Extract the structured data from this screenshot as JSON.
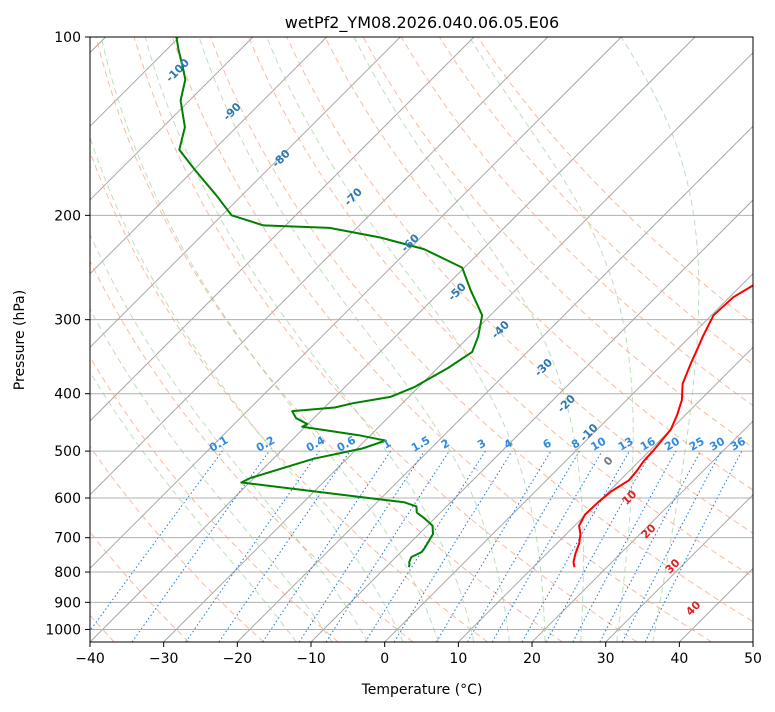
{
  "chart_data": {
    "type": "line",
    "title": "wetPf2_YM08.2026.040.06.05.E06",
    "xlabel": "Temperature (°C)",
    "ylabel": "Pressure (hPa)",
    "xlim": [
      -40,
      50
    ],
    "ylim": [
      1050,
      100
    ],
    "y_scale": "log",
    "grid": true,
    "x_ticks": [
      -40,
      -30,
      -20,
      -10,
      0,
      10,
      20,
      30,
      40,
      50
    ],
    "y_ticks": [
      100,
      200,
      300,
      400,
      500,
      600,
      700,
      800,
      900,
      1000
    ],
    "skew_guides": {
      "isotherm_step": 10,
      "dry_adiabat_start": [
        -40,
        -30,
        -20,
        -10,
        0,
        10,
        20,
        30,
        40,
        50,
        60,
        70,
        80,
        90,
        100,
        110,
        120
      ],
      "moist_adiabat_start": [
        -15,
        -10,
        -5,
        0,
        5,
        10,
        15,
        20,
        25,
        30,
        35
      ],
      "mixing_ratios": [
        0.1,
        0.2,
        0.4,
        0.6,
        1,
        1.5,
        2,
        3,
        4,
        6,
        8,
        10,
        13,
        16,
        20,
        25,
        30,
        36
      ]
    },
    "mixing_ratio_labels": [
      "0.1",
      "0.2",
      "0.4",
      "0.6",
      "1",
      "1.5",
      "2",
      "3",
      "4",
      "6",
      "8",
      "10",
      "13",
      "16",
      "20",
      "25",
      "30",
      "36"
    ],
    "isotherm_labels_upper": [
      {
        "text": "-100",
        "x": -105,
        "p": 115
      },
      {
        "text": "-90",
        "x": -92,
        "p": 135
      },
      {
        "text": "-80",
        "x": -79,
        "p": 162
      },
      {
        "text": "-70",
        "x": -64,
        "p": 188
      },
      {
        "text": "-60",
        "x": -50,
        "p": 225
      },
      {
        "text": "-50",
        "x": -37,
        "p": 272
      },
      {
        "text": "-40",
        "x": -26,
        "p": 315
      },
      {
        "text": "-30",
        "x": -15,
        "p": 365
      },
      {
        "text": "-20",
        "x": -7,
        "p": 420
      },
      {
        "text": "-10",
        "x": 0,
        "p": 470
      }
    ],
    "isotherm_labels_lower": [
      {
        "text": "0",
        "x": 6.5,
        "p": 525
      },
      {
        "text": "10",
        "x": 14.3,
        "p": 605
      },
      {
        "text": "20",
        "x": 21.5,
        "p": 690
      },
      {
        "text": "30",
        "x": 29.5,
        "p": 790
      },
      {
        "text": "40",
        "x": 38,
        "p": 930
      }
    ],
    "series": [
      {
        "color": "#ff0000",
        "x": [
          15.6,
          14.8,
          13.9,
          13.0,
          11.9,
          10.6,
          9.9,
          10.0,
          10.3,
          11.2,
          11.0,
          10.6,
          10.5,
          10.0,
          8.9,
          7.5,
          5.4,
          3.7,
          2.6,
          1.7,
          0.3,
          0.5,
          2.0,
          4.2,
          6.4,
          8.1,
          9.2,
          9.8,
          9.5,
          8.9,
          8.4,
          8.4,
          8.8,
          9.8,
          10.7,
          12.1,
          13.4,
          14.3,
          15.6,
          16.2,
          16.5,
          16.7
        ],
        "y": [
          785,
          770,
          745,
          715,
          690,
          668,
          640,
          610,
          585,
          560,
          540,
          520,
          500,
          460,
          435,
          410,
          385,
          355,
          335,
          320,
          295,
          275,
          258,
          243,
          233,
          222,
          214,
          205,
          196,
          184,
          170,
          158,
          148,
          139,
          131,
          124,
          117,
          112,
          107,
          104,
          102,
          100
        ]
      },
      {
        "color": "#008000",
        "x": [
          -6.9,
          -7.1,
          -7.5,
          -7.9,
          -7.2,
          -7.3,
          -7.6,
          -8.1,
          -9.3,
          -11.3,
          -13.2,
          -14.1,
          -16.3,
          -24.4,
          -41.1,
          -40.5,
          -34.5,
          -29.3,
          -27.2,
          -31.6,
          -40.4,
          -40.1,
          -42.4,
          -43.9,
          -38.6,
          -36.7,
          -32.5,
          -30.6,
          -28.6,
          -27.5,
          -28.8,
          -31.1,
          -36.0,
          -40.3,
          -48.0,
          -55.5,
          -63.7,
          -73.0,
          -78.7,
          -83.5,
          -89.7,
          -94.7,
          -97.0,
          -101.2,
          -103.4,
          -105.6,
          -108.4,
          -110.4
        ],
        "y": [
          785,
          778,
          770,
          755,
          740,
          730,
          715,
          690,
          668,
          650,
          635,
          620,
          610,
          595,
          565,
          555,
          515,
          495,
          480,
          470,
          455,
          450,
          440,
          428,
          422,
          415,
          405,
          390,
          362,
          340,
          320,
          295,
          268,
          245,
          228,
          218,
          210,
          208,
          200,
          185,
          168,
          155,
          142,
          128,
          118,
          112,
          105,
          100
        ]
      }
    ]
  }
}
